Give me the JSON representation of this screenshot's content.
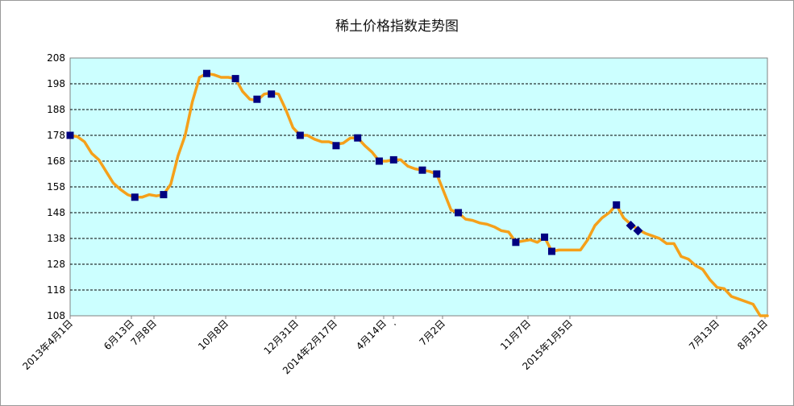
{
  "chart_data": {
    "type": "line",
    "title": "稀土价格指数走势图",
    "xlabel": "",
    "ylabel": "",
    "ylim": [
      108,
      208
    ],
    "y_ticks": [
      "208",
      "198",
      "188",
      "178",
      "168",
      "158",
      "148",
      "138",
      "128",
      "118",
      "108"
    ],
    "x_tick_labels": [
      "2013年4月1日",
      "6月13日",
      "7月8日",
      "10月8日",
      "12月31日",
      "2014年2月17日",
      "4月14日",
      ".",
      "7月2日",
      "11月7日",
      "2015年1月5日",
      "7月13日",
      "8月31日"
    ],
    "grid": "horizontal-dashed",
    "plot_background": "#ccffff",
    "line_color": "#f5a01a",
    "marker_color": "#000080",
    "series": [
      {
        "values": [
          178,
          177.5,
          175.5,
          171,
          168.5,
          164,
          159.5,
          157,
          155,
          154,
          154,
          155,
          154.5,
          155,
          159,
          170,
          178,
          191,
          200.5,
          202,
          201.5,
          200.5,
          200.5,
          200,
          195,
          192,
          191.5,
          194,
          194.5,
          194,
          188,
          181,
          178,
          178,
          176.5,
          175.5,
          175.5,
          174.5,
          175,
          177,
          177,
          174,
          171.5,
          168,
          168,
          168.5,
          168.5,
          166,
          165,
          164.5,
          164,
          163,
          156,
          149,
          148,
          145.5,
          145,
          144,
          143.5,
          142.5,
          141,
          140.5,
          136.5,
          137,
          137.5,
          136.5,
          138.5,
          133,
          133.5,
          133.5,
          133.5,
          133.5,
          137.5,
          143,
          146,
          148,
          151,
          146,
          143.5,
          141.5,
          140,
          139,
          138,
          136,
          136,
          131,
          130,
          127.5,
          126,
          122,
          119,
          118.5,
          115.5,
          114.5,
          113.5,
          112.5,
          108,
          108
        ]
      }
    ],
    "marked_points": [
      {
        "label": "2013年4月1日",
        "value": 178
      },
      {
        "label": "6月13日",
        "value": 154
      },
      {
        "label": "7月8日",
        "value": 155
      },
      {
        "label": "",
        "value": 202
      },
      {
        "label": "10月8日",
        "value": 200
      },
      {
        "label": "",
        "value": 192
      },
      {
        "label": "",
        "value": 194
      },
      {
        "label": "12月31日",
        "value": 178
      },
      {
        "label": "2014年2月17日",
        "value": 174
      },
      {
        "label": "",
        "value": 177
      },
      {
        "label": "4月14日",
        "value": 168
      },
      {
        "label": "",
        "value": 168.5
      },
      {
        "label": "",
        "value": 164.5
      },
      {
        "label": "7月2日",
        "value": 163
      },
      {
        "label": "",
        "value": 148
      },
      {
        "label": "11月7日",
        "value": 136.5
      },
      {
        "label": "",
        "value": 138.5
      },
      {
        "label": "2015年1月5日",
        "value": 133
      },
      {
        "label": "",
        "value": 151
      },
      {
        "label": "",
        "value": 143
      },
      {
        "label": "",
        "value": 141
      }
    ]
  }
}
